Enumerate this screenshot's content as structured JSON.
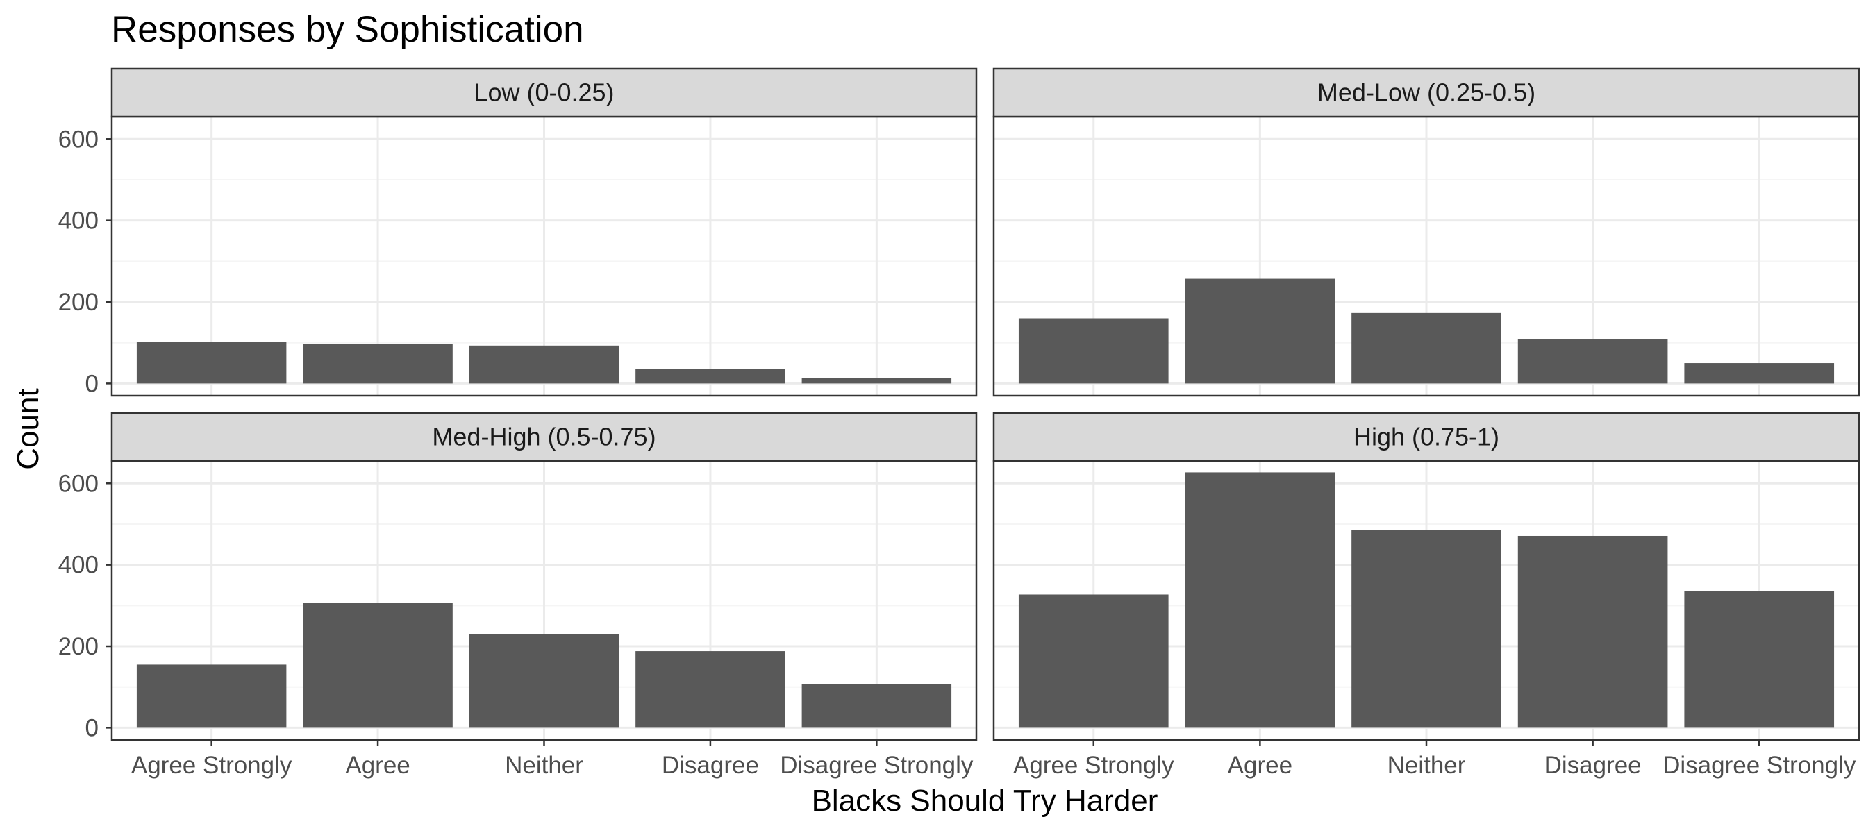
{
  "chart_data": {
    "type": "bar",
    "title": "Responses by Sophistication",
    "xlabel": "Blacks Should Try Harder",
    "ylabel": "Count",
    "categories": [
      "Agree Strongly",
      "Agree",
      "Neither",
      "Disagree",
      "Disagree Strongly"
    ],
    "y_ticks": [
      "0",
      "200",
      "400",
      "600"
    ],
    "ylim": [
      -30,
      655
    ],
    "grid": true,
    "facets": [
      {
        "label": "Low (0-0.25)",
        "values": [
          102,
          97,
          93,
          36,
          13
        ]
      },
      {
        "label": "Med-Low (0.25-0.5)",
        "values": [
          160,
          257,
          173,
          108,
          50
        ]
      },
      {
        "label": "Med-High (0.5-0.75)",
        "values": [
          155,
          306,
          229,
          188,
          107
        ]
      },
      {
        "label": "High (0.75-1)",
        "values": [
          327,
          627,
          485,
          471,
          335
        ]
      }
    ],
    "colors": {
      "bar": "#595959",
      "strip_fill": "#d9d9d9",
      "panel_border": "#333333",
      "grid_major": "#ebebeb",
      "grid_minor": "#f5f5f5"
    }
  }
}
